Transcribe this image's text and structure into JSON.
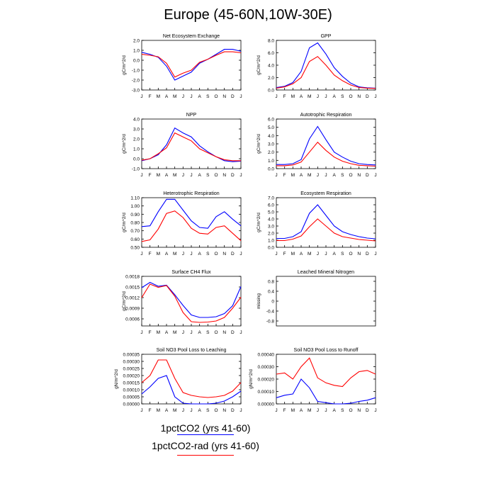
{
  "title": "Europe (45-60N,10W-30E)",
  "legend": [
    {
      "label": "1pctCO2 (yrs 41-60)",
      "color": "#0000ff"
    },
    {
      "label": "1pctCO2-rad (yrs 41-60)",
      "color": "#ff0000"
    }
  ],
  "chart_data": [
    {
      "type": "line",
      "title": "Net Ecosystem Exchange",
      "ylabel": "gC/m^2/d",
      "categories": [
        "J",
        "F",
        "M",
        "A",
        "M",
        "J",
        "J",
        "A",
        "S",
        "O",
        "N",
        "D",
        "J"
      ],
      "yticks": [
        "2.0",
        "1.0",
        "0.0",
        "-1.0",
        "-2.0",
        "-3.0"
      ],
      "ylim": [
        -3.0,
        2.0
      ],
      "series": [
        {
          "color": "#0000ff",
          "values": [
            0.8,
            0.6,
            0.3,
            -0.6,
            -2.0,
            -1.6,
            -1.2,
            -0.3,
            0.1,
            0.6,
            1.1,
            1.1,
            0.9
          ]
        },
        {
          "color": "#ff0000",
          "values": [
            0.6,
            0.5,
            0.35,
            -0.3,
            -1.7,
            -1.3,
            -1.0,
            -0.2,
            0.1,
            0.5,
            0.85,
            0.85,
            0.75
          ]
        }
      ]
    },
    {
      "type": "line",
      "title": "GPP",
      "ylabel": "gC/m^2/d",
      "categories": [
        "J",
        "F",
        "M",
        "A",
        "M",
        "J",
        "J",
        "A",
        "S",
        "O",
        "N",
        "D",
        "J"
      ],
      "yticks": [
        "8.0",
        "6.0",
        "4.0",
        "2.0",
        "0.0"
      ],
      "ylim": [
        0,
        8.0
      ],
      "series": [
        {
          "color": "#0000ff",
          "values": [
            0.4,
            0.6,
            1.2,
            3.0,
            6.8,
            7.6,
            5.8,
            3.6,
            2.2,
            1.1,
            0.5,
            0.35,
            0.3
          ]
        },
        {
          "color": "#ff0000",
          "values": [
            0.3,
            0.5,
            1.0,
            2.0,
            4.6,
            5.4,
            4.0,
            2.4,
            1.5,
            0.8,
            0.4,
            0.3,
            0.25
          ]
        }
      ]
    },
    {
      "type": "line",
      "title": "NPP",
      "ylabel": "gC/m^2/d",
      "categories": [
        "J",
        "F",
        "M",
        "A",
        "M",
        "J",
        "J",
        "A",
        "S",
        "O",
        "N",
        "D",
        "J"
      ],
      "yticks": [
        "4.0",
        "3.0",
        "2.0",
        "1.0",
        "0.0",
        "-1.0"
      ],
      "ylim": [
        -1.0,
        4.0
      ],
      "series": [
        {
          "color": "#0000ff",
          "values": [
            -0.2,
            0.0,
            0.4,
            1.4,
            3.1,
            2.6,
            2.2,
            1.3,
            0.7,
            0.2,
            -0.2,
            -0.3,
            -0.25
          ]
        },
        {
          "color": "#ff0000",
          "values": [
            -0.15,
            0.0,
            0.5,
            1.1,
            2.6,
            2.2,
            1.8,
            1.0,
            0.6,
            0.2,
            -0.1,
            -0.2,
            -0.2
          ]
        }
      ]
    },
    {
      "type": "line",
      "title": "Autotrophic Respiration",
      "ylabel": "gC/m^2/d",
      "categories": [
        "J",
        "F",
        "M",
        "A",
        "M",
        "J",
        "J",
        "A",
        "S",
        "O",
        "N",
        "D",
        "J"
      ],
      "yticks": [
        "6.0",
        "5.0",
        "4.0",
        "3.0",
        "2.0",
        "1.0",
        "0.0"
      ],
      "ylim": [
        0,
        6.0
      ],
      "series": [
        {
          "color": "#0000ff",
          "values": [
            0.5,
            0.5,
            0.6,
            1.1,
            3.6,
            5.1,
            3.5,
            2.0,
            1.4,
            0.9,
            0.6,
            0.5,
            0.45
          ]
        },
        {
          "color": "#ff0000",
          "values": [
            0.35,
            0.35,
            0.45,
            0.8,
            2.0,
            3.2,
            2.2,
            1.4,
            0.9,
            0.6,
            0.4,
            0.35,
            0.3
          ]
        }
      ]
    },
    {
      "type": "line",
      "title": "Heterotrophic Respiration",
      "ylabel": "gC/m^2/d",
      "categories": [
        "J",
        "F",
        "M",
        "A",
        "M",
        "J",
        "J",
        "A",
        "S",
        "O",
        "N",
        "D",
        "J"
      ],
      "yticks": [
        "1.10",
        "1.00",
        "0.90",
        "0.80",
        "0.70",
        "0.60",
        "0.50"
      ],
      "ylim": [
        0.5,
        1.1
      ],
      "series": [
        {
          "color": "#0000ff",
          "values": [
            0.75,
            0.76,
            0.93,
            1.08,
            1.08,
            0.95,
            0.82,
            0.74,
            0.73,
            0.87,
            0.93,
            0.84,
            0.76
          ]
        },
        {
          "color": "#ff0000",
          "values": [
            0.57,
            0.59,
            0.72,
            0.91,
            0.94,
            0.86,
            0.73,
            0.67,
            0.66,
            0.74,
            0.76,
            0.67,
            0.58
          ]
        }
      ]
    },
    {
      "type": "line",
      "title": "Ecosystem Respiration",
      "ylabel": "gC/m^2/d",
      "categories": [
        "J",
        "F",
        "M",
        "A",
        "M",
        "J",
        "J",
        "A",
        "S",
        "O",
        "N",
        "D",
        "J"
      ],
      "yticks": [
        "7.0",
        "6.0",
        "5.0",
        "4.0",
        "3.0",
        "2.0",
        "1.0",
        "0.0"
      ],
      "ylim": [
        0,
        7.0
      ],
      "series": [
        {
          "color": "#0000ff",
          "values": [
            1.25,
            1.25,
            1.5,
            2.2,
            4.8,
            6.0,
            4.5,
            3.0,
            2.2,
            1.8,
            1.5,
            1.3,
            1.2
          ]
        },
        {
          "color": "#ff0000",
          "values": [
            0.95,
            0.95,
            1.15,
            1.6,
            2.9,
            4.0,
            3.0,
            2.0,
            1.5,
            1.3,
            1.1,
            1.0,
            0.9
          ]
        }
      ]
    },
    {
      "type": "line",
      "title": "Surface CH4 Flux",
      "ylabel": "gC/m^2/d",
      "categories": [
        "J",
        "F",
        "M",
        "A",
        "M",
        "J",
        "J",
        "A",
        "S",
        "O",
        "N",
        "D",
        "J"
      ],
      "yticks": [
        "0.0018",
        "0.0015",
        "0.0012",
        "0.0009",
        "0.0006"
      ],
      "ylim": [
        0.0004,
        0.0018
      ],
      "series": [
        {
          "color": "#0000ff",
          "values": [
            0.00148,
            0.00163,
            0.00152,
            0.00155,
            0.00128,
            0.00098,
            0.00071,
            0.00064,
            0.00064,
            0.00066,
            0.00075,
            0.00097,
            0.00151
          ]
        },
        {
          "color": "#ff0000",
          "values": [
            0.0012,
            0.00158,
            0.00149,
            0.00154,
            0.00124,
            0.00078,
            0.00052,
            0.0005,
            0.00051,
            0.00054,
            0.00064,
            0.0009,
            0.00121
          ]
        }
      ]
    },
    {
      "type": "line",
      "title": "Leached Mineral Nitrogen",
      "ylabel": "missing",
      "categories": [],
      "yticks": [
        "0.8",
        "0.4",
        "0",
        "-0.4",
        "-0.8"
      ],
      "ylim": [
        -1.0,
        1.0
      ],
      "series": []
    },
    {
      "type": "line",
      "title": "Soil NO3 Pool Loss to Leaching",
      "ylabel": "gN/m^2/d",
      "categories": [
        "J",
        "F",
        "M",
        "A",
        "M",
        "J",
        "J",
        "A",
        "S",
        "O",
        "N",
        "D",
        "J"
      ],
      "yticks": [
        "0.00035",
        "0.00030",
        "0.00025",
        "0.00020",
        "0.00015",
        "0.00010",
        "0.00005",
        "0.00000"
      ],
      "ylim": [
        0,
        0.00035
      ],
      "series": [
        {
          "color": "#0000ff",
          "values": [
            7e-05,
            0.00012,
            0.00018,
            0.0002,
            5e-05,
            5e-06,
            0.0,
            0.0,
            0.0,
            5e-06,
            2e-05,
            5e-05,
            9e-05
          ]
        },
        {
          "color": "#ff0000",
          "values": [
            0.00015,
            0.0002,
            0.00031,
            0.00031,
            0.00018,
            8e-05,
            6e-05,
            5e-05,
            4.5e-05,
            5e-05,
            6e-05,
            9e-05,
            0.00015
          ]
        }
      ]
    },
    {
      "type": "line",
      "title": "Soil NO3 Pool Loss to Runoff",
      "ylabel": "gN/m^2/d",
      "categories": [
        "J",
        "F",
        "M",
        "A",
        "M",
        "J",
        "J",
        "A",
        "S",
        "O",
        "N",
        "D",
        "J"
      ],
      "yticks": [
        "0.00040",
        "0.00030",
        "0.00020",
        "0.00010",
        "0.00000"
      ],
      "ylim": [
        0,
        0.0004
      ],
      "series": [
        {
          "color": "#0000ff",
          "values": [
            5e-05,
            7e-05,
            8e-05,
            0.0002,
            0.00013,
            2e-05,
            1e-05,
            0.0,
            0.0,
            5e-06,
            2e-05,
            3e-05,
            5e-05
          ]
        },
        {
          "color": "#ff0000",
          "values": [
            0.00024,
            0.00025,
            0.0002,
            0.0003,
            0.00037,
            0.00021,
            0.00017,
            0.00015,
            0.00014,
            0.00021,
            0.00026,
            0.00027,
            0.00024
          ]
        }
      ]
    }
  ]
}
